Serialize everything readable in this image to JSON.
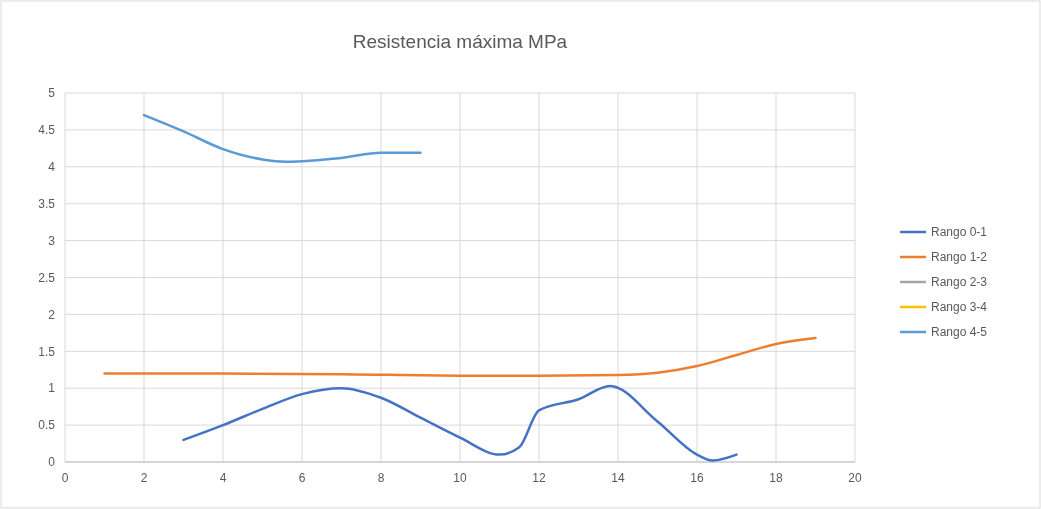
{
  "chart_data": {
    "type": "line",
    "title": "Resistencia máxima MPa",
    "xlim": [
      0,
      20
    ],
    "xticks": [
      0,
      2,
      4,
      6,
      8,
      10,
      12,
      14,
      16,
      18,
      20
    ],
    "ylim": [
      0,
      5
    ],
    "yticks": [
      0,
      0.5,
      1,
      1.5,
      2,
      2.5,
      3,
      3.5,
      4,
      4.5,
      5
    ],
    "grid": true,
    "legend": "right",
    "marker": "none",
    "line_style": "solid",
    "series": [
      {
        "name": "Rango 0-1",
        "color": "#4472c4",
        "x": [
          3,
          4,
          5,
          6,
          7,
          8,
          9,
          10,
          11,
          11.5,
          12,
          13,
          13.8,
          15,
          16,
          16.4,
          17
        ],
        "values": [
          0.3,
          0.5,
          0.72,
          0.92,
          1.0,
          0.87,
          0.6,
          0.33,
          0.1,
          0.2,
          0.7,
          0.85,
          1.03,
          0.55,
          0.1,
          0.02,
          0.1
        ]
      },
      {
        "name": "Rango 1-2",
        "color": "#ed7d31",
        "x": [
          1,
          4,
          7,
          10,
          12,
          14,
          15,
          16,
          17,
          18,
          19
        ],
        "values": [
          1.2,
          1.2,
          1.19,
          1.17,
          1.17,
          1.18,
          1.21,
          1.3,
          1.45,
          1.6,
          1.68
        ]
      },
      {
        "name": "Rango 2-3",
        "color": "#a5a5a5"
      },
      {
        "name": "Rango 3-4",
        "color": "#ffc000"
      },
      {
        "name": "Rango 4-5",
        "color": "#5b9bd5",
        "x": [
          2,
          3,
          4,
          5,
          5.6,
          7,
          8,
          9
        ],
        "values": [
          4.7,
          4.48,
          4.24,
          4.1,
          4.07,
          4.12,
          4.19,
          4.19
        ]
      }
    ]
  }
}
